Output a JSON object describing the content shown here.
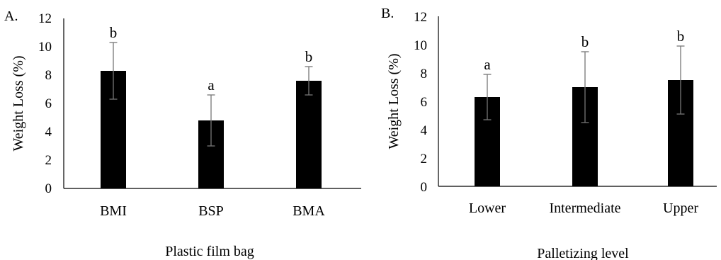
{
  "chart_data": [
    {
      "type": "bar",
      "panel_label": "A.",
      "categories": [
        "BMI",
        "BSP",
        "BMA"
      ],
      "values": [
        8.3,
        4.8,
        7.6
      ],
      "error": [
        2.0,
        1.8,
        1.0
      ],
      "letters": [
        "b",
        "a",
        "b"
      ],
      "xlabel": "Plastic film bag",
      "ylabel": "Weight Loss (%)",
      "ylim": [
        0,
        12
      ],
      "yticks": [
        "0",
        "2",
        "4",
        "6",
        "8",
        "10",
        "12"
      ],
      "bar_color": "#000000",
      "grid": false
    },
    {
      "type": "bar",
      "panel_label": "B.",
      "categories": [
        "Lower",
        "Intermediate",
        "Upper"
      ],
      "values": [
        6.3,
        7.0,
        7.5
      ],
      "error": [
        1.6,
        2.5,
        2.4
      ],
      "letters": [
        "a",
        "b",
        "b"
      ],
      "xlabel": "Palletizing level",
      "ylabel": "Weight Loss (%)",
      "ylim": [
        0,
        12
      ],
      "yticks": [
        "0",
        "2",
        "4",
        "6",
        "8",
        "10",
        "12"
      ],
      "bar_color": "#000000",
      "grid": false
    }
  ]
}
